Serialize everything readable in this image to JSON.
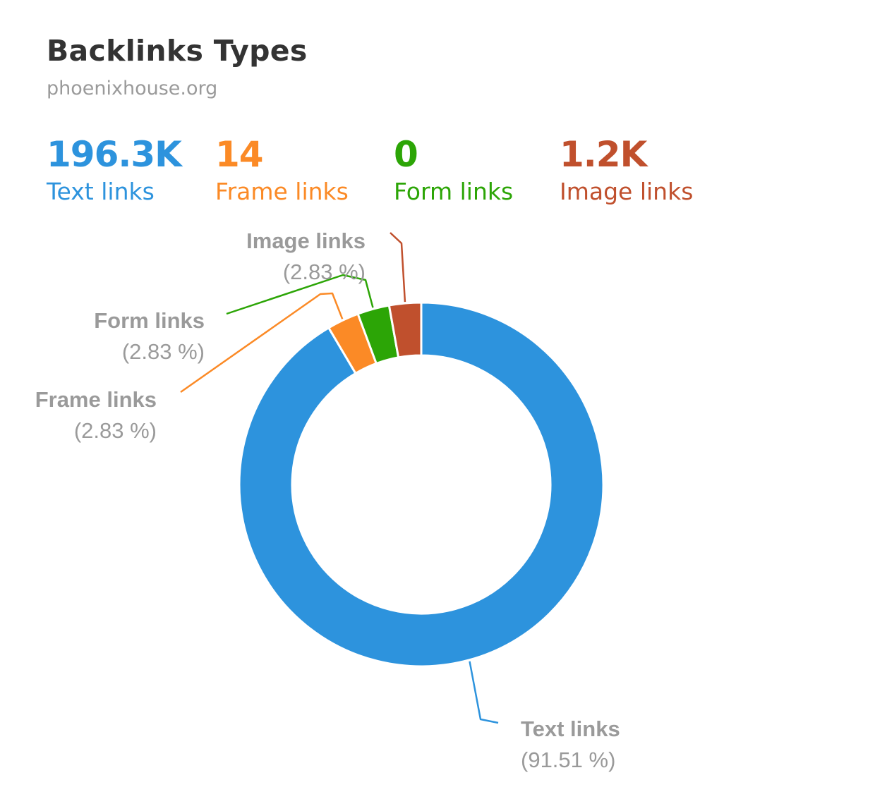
{
  "header": {
    "title": "Backlinks Types",
    "domain": "phoenixhouse.org"
  },
  "metrics": [
    {
      "value": "196.3K",
      "label": "Text links",
      "color": "#2d93dd"
    },
    {
      "value": "14",
      "label": "Frame links",
      "color": "#fb8a26"
    },
    {
      "value": "0",
      "label": "Form links",
      "color": "#2ca506"
    },
    {
      "value": "1.2K",
      "label": "Image links",
      "color": "#c0502d"
    }
  ],
  "chart_data": {
    "type": "pie",
    "donut": true,
    "categories": [
      "Text links",
      "Frame links",
      "Form links",
      "Image links"
    ],
    "values": [
      91.51,
      2.83,
      2.83,
      2.83
    ],
    "labels": [
      "Text links",
      "Frame links",
      "Form links",
      "Image links"
    ],
    "percent_labels": [
      "(91.51 %)",
      "(2.83 %)",
      "(2.83 %)",
      "(2.83 %)"
    ],
    "colors": [
      "#2d93dd",
      "#fb8a26",
      "#2ca506",
      "#c0502d"
    ],
    "legend": false
  }
}
